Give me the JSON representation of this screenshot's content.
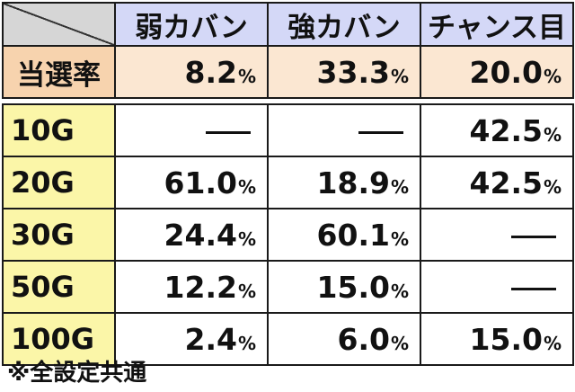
{
  "header": {
    "col1": "弱カバン",
    "col2": "強カバン",
    "col3": "チャンス目"
  },
  "rate_row": {
    "label": "当選率",
    "values": [
      "8.2",
      "33.3",
      "20.0"
    ],
    "unit": "%"
  },
  "rows": [
    {
      "label": "10G",
      "values": [
        "—",
        "—",
        "42.5"
      ]
    },
    {
      "label": "20G",
      "values": [
        "61.0",
        "18.9",
        "42.5"
      ]
    },
    {
      "label": "30G",
      "values": [
        "24.4",
        "60.1",
        "—"
      ]
    },
    {
      "label": "50G",
      "values": [
        "12.2",
        "15.0",
        "—"
      ]
    },
    {
      "label": "100G",
      "values": [
        "2.4",
        "6.0",
        "15.0"
      ]
    }
  ],
  "note": "※全設定共通",
  "colors": {
    "header_bg": "#d4d8f7",
    "rate_label_bg": "#f7d3ae",
    "rate_value_bg": "#fbe7d2",
    "row_label_bg": "#fbf6a8",
    "corner_bg": "#d6d6d6"
  }
}
